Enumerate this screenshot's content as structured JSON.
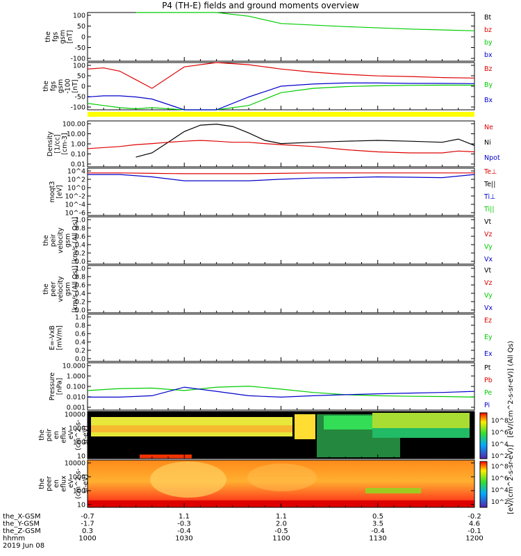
{
  "title": "P4 (TH-E) fields and ground moments overview",
  "colors": {
    "black": "#000000",
    "red": "#dd0000",
    "green": "#00cc00",
    "blue": "#0000cc",
    "yellow": "#ffff00"
  },
  "time_axis": {
    "rows": [
      {
        "label": "the_X-GSM",
        "values": [
          "-0.7",
          "1.1",
          "1.1",
          "0.5",
          "-0.2"
        ]
      },
      {
        "label": "the_Y-GSM",
        "values": [
          "-1.7",
          "-0.3",
          "2.0",
          "3.5",
          "4.6"
        ]
      },
      {
        "label": "the_Z-GSM",
        "values": [
          "0.3",
          "-0.4",
          "-0.5",
          "-0.4",
          "-0.1"
        ]
      },
      {
        "label": "hhmm",
        "values": [
          "1000",
          "1030",
          "1100",
          "1130",
          "1200"
        ]
      }
    ],
    "date": "2019 Jun 08"
  },
  "chart_data": [
    {
      "type": "line",
      "panel": "fgs_gsm_nT",
      "ylabel": [
        "the",
        "fgs",
        "gsm",
        "[nT]"
      ],
      "yticks": [
        "100",
        "50",
        "0",
        "-50",
        "-100"
      ],
      "ylim": [
        -100,
        100
      ],
      "legend": [
        "Bt",
        "bz",
        "by",
        "bx"
      ],
      "x": [
        1000,
        1010,
        1015,
        1020,
        1030,
        1040,
        1050,
        1100,
        1120,
        1140,
        1200
      ],
      "series": [
        {
          "name": "by",
          "values": [
            null,
            null,
            100,
            100,
            100,
            100,
            85,
            55,
            42,
            32,
            25
          ]
        }
      ]
    },
    {
      "type": "line",
      "panel": "fgs_gsm_detrended",
      "ylabel": [
        "the",
        "fgs",
        "gsm",
        "-100",
        "[nT]"
      ],
      "yticks": [
        "100",
        "50",
        "0",
        "-50",
        "-100"
      ],
      "ylim": [
        -120,
        100
      ],
      "legend": [
        "Bz",
        "By",
        "Bx"
      ],
      "x": [
        1000,
        1005,
        1010,
        1015,
        1020,
        1030,
        1040,
        1050,
        1100,
        1110,
        1120,
        1130,
        1140,
        1150,
        1200
      ],
      "series": [
        {
          "name": "Bz",
          "values": [
            70,
            75,
            60,
            20,
            -20,
            80,
            100,
            90,
            70,
            55,
            45,
            38,
            35,
            30,
            28
          ]
        },
        {
          "name": "By",
          "values": [
            -90,
            -100,
            -110,
            -115,
            -110,
            -120,
            -120,
            -100,
            -40,
            -20,
            -12,
            -8,
            -6,
            -5,
            -5
          ]
        },
        {
          "name": "Bx",
          "values": [
            -60,
            -55,
            -55,
            -60,
            -70,
            -120,
            -120,
            -60,
            -10,
            0,
            5,
            5,
            3,
            3,
            2
          ]
        }
      ]
    },
    {
      "type": "line",
      "panel": "density",
      "ylabel": [
        "Density",
        "[1/cc]",
        "[cm-3]"
      ],
      "yticks": [
        "100.00",
        "10.00",
        "1.00",
        "0.10",
        "0.01"
      ],
      "ylim": [
        0.01,
        200
      ],
      "yscale": "log",
      "legend": [
        "Ne",
        "Ni",
        "Npot"
      ],
      "x": [
        1000,
        1010,
        1015,
        1020,
        1025,
        1030,
        1035,
        1040,
        1045,
        1050,
        1055,
        1100,
        1110,
        1120,
        1130,
        1140,
        1150,
        1155,
        1200
      ],
      "series": [
        {
          "name": "Ni",
          "values": [
            null,
            null,
            0.08,
            0.2,
            2,
            20,
            80,
            100,
            60,
            15,
            3,
            1.5,
            2,
            2.5,
            3,
            2.5,
            2,
            4,
            1
          ]
        },
        {
          "name": "Ne",
          "values": [
            0.5,
            0.8,
            1.2,
            1.5,
            2,
            2.5,
            3,
            2.5,
            2,
            2,
            1.5,
            1.2,
            0.8,
            0.4,
            0.25,
            0.2,
            0.2,
            0.3,
            0.25
          ]
        }
      ]
    },
    {
      "type": "line",
      "panel": "temperature",
      "ylabel": [
        "moqt3",
        "[eV]"
      ],
      "yticks": [
        "10^4",
        "10^2",
        "10^0",
        "10^-2",
        "10^-4",
        "10^-6"
      ],
      "ylim": [
        -7,
        5
      ],
      "yscale": "log",
      "legend": [
        "Te⊥",
        "Te||",
        "Ti⊥",
        "Ti||"
      ],
      "x": [
        1000,
        1010,
        1020,
        1030,
        1040,
        1050,
        1100,
        1110,
        1120,
        1130,
        1140,
        1150,
        1200
      ],
      "series": [
        {
          "name": "Te⊥",
          "values": [
            3.8,
            3.8,
            3.7,
            3.6,
            3.6,
            3.6,
            3.7,
            3.8,
            3.8,
            3.8,
            3.8,
            3.8,
            3.8
          ]
        },
        {
          "name": "Ti⊥",
          "values": [
            3.4,
            3.4,
            2.8,
            1.8,
            1.8,
            1.8,
            2.2,
            2.5,
            2.6,
            2.8,
            2.7,
            2.6,
            3.4
          ]
        }
      ]
    },
    {
      "type": "line",
      "panel": "peir_velocity",
      "ylabel": [
        "the",
        "peir",
        "velocity",
        "gsm",
        "[km/s (All Qs)]"
      ],
      "yticks": [
        "1.0",
        "0.8",
        "0.6",
        "0.4",
        "0.2",
        "0.0"
      ],
      "ylim": [
        0,
        1
      ],
      "legend": [
        "Vt",
        "Vz",
        "Vy",
        "Vx"
      ],
      "series": []
    },
    {
      "type": "line",
      "panel": "peer_velocity",
      "ylabel": [
        "the",
        "peer",
        "velocity",
        "gsm",
        "[km/s (All Qs)]"
      ],
      "yticks": [
        "1.0",
        "0.8",
        "0.6",
        "0.4",
        "0.2",
        "0.0"
      ],
      "ylim": [
        0,
        1
      ],
      "legend": [
        "Vt",
        "Vz",
        "Vy",
        "Vx"
      ],
      "series": []
    },
    {
      "type": "line",
      "panel": "efield",
      "ylabel": [
        "E=-VxB",
        "[mV/m]"
      ],
      "yticks": [
        "1.0",
        "0.8",
        "0.6",
        "0.4",
        "0.2",
        "0.0"
      ],
      "ylim": [
        0,
        1
      ],
      "legend": [
        "Ez",
        "Ey",
        "Ex"
      ],
      "series": []
    },
    {
      "type": "line",
      "panel": "pressure",
      "ylabel": [
        "Pressure",
        "[nPa]"
      ],
      "yticks": [
        "10.000",
        "1.000",
        "0.100",
        "0.010",
        "0.001"
      ],
      "ylim": [
        0.001,
        20
      ],
      "yscale": "log",
      "legend": [
        "Pt",
        "Pb",
        "Pe",
        "Pi"
      ],
      "x": [
        1000,
        1010,
        1020,
        1030,
        1040,
        1050,
        1100,
        1110,
        1120,
        1130,
        1140,
        1150,
        1200
      ],
      "series": [
        {
          "name": "Pe",
          "values": [
            0.06,
            0.09,
            0.1,
            0.06,
            0.12,
            0.15,
            0.08,
            0.04,
            0.025,
            0.02,
            0.018,
            0.017,
            0.015
          ]
        },
        {
          "name": "Pi",
          "values": [
            0.015,
            0.015,
            0.02,
            0.12,
            0.05,
            0.02,
            0.015,
            0.02,
            0.025,
            0.03,
            0.035,
            0.04,
            0.05
          ]
        }
      ]
    },
    {
      "type": "heatmap",
      "panel": "peir_en_eflux",
      "ylabel": [
        "the",
        "peir",
        "en",
        "eflux",
        "eV",
        "(cm^2-s-",
        "sr-eV)"
      ],
      "yticks": [
        "10000",
        "1000",
        "100",
        "10"
      ],
      "ylim": [
        10,
        20000
      ],
      "yscale": "log"
    },
    {
      "type": "heatmap",
      "panel": "peer_en_eflux",
      "ylabel": [
        "the",
        "peer",
        "en",
        "eflux",
        "eV",
        "(cm^2-s-",
        "sr-eV)"
      ],
      "yticks": [
        "10000",
        "1000",
        "100",
        "10"
      ],
      "ylim": [
        10,
        20000
      ],
      "yscale": "log"
    }
  ],
  "colorbar": {
    "label": "[eV/(cm^2-s-sr-eV)]",
    "label2": "[eV/(cm^2-s-sr-eV)] (All Qs)",
    "upper_ticks": [
      "10^8",
      "10^6",
      "10^4",
      "10^2"
    ],
    "lower_ticks": [
      "10^8",
      "10^6",
      "10^4",
      "10^2"
    ]
  }
}
